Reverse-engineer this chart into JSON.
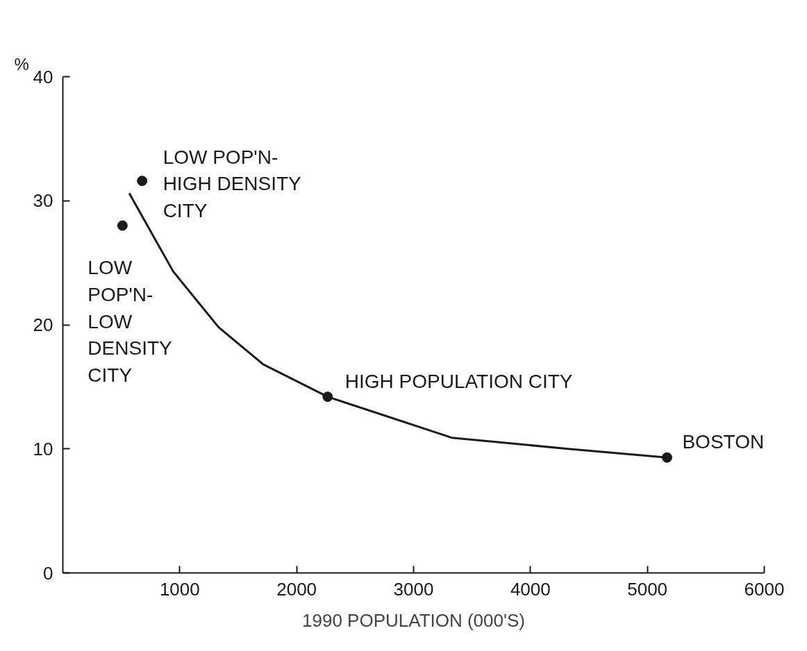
{
  "chart_data": {
    "type": "line",
    "xlabel": "1990 POPULATION (000'S)",
    "ylabel": "%",
    "xlim": [
      0,
      6000
    ],
    "ylim": [
      0,
      40
    ],
    "xticks": [
      1000,
      2000,
      3000,
      4000,
      5000,
      6000
    ],
    "yticks": [
      0,
      10,
      20,
      30,
      40
    ],
    "grid": false,
    "series": [
      {
        "color": "#1a1a1a",
        "marker": "none",
        "line_style": "solid",
        "x": [
          568,
          944,
          1333,
          1715,
          2265,
          3326,
          4322,
          5168
        ],
        "values": [
          30.6,
          24.3,
          19.8,
          16.8,
          14.2,
          10.9,
          10.0,
          9.3
        ]
      },
      {
        "type": "scatter",
        "color": "#1a1a1a",
        "marker": "circle",
        "x": [
          510,
          678,
          2265,
          5168
        ],
        "values": [
          28.0,
          31.6,
          14.2,
          9.3
        ]
      }
    ],
    "annotations": [
      {
        "text": "LOW\nPOP'N-\nLOW\nDENSITY\nCITY",
        "x": 510,
        "y": 28.0
      },
      {
        "text": "LOW POP'N-\nHIGH DENSITY\nCITY",
        "x": 678,
        "y": 31.6
      },
      {
        "text": "HIGH POPULATION CITY",
        "x": 2265,
        "y": 14.2
      },
      {
        "text": "BOSTON",
        "x": 5168,
        "y": 9.3
      }
    ]
  }
}
